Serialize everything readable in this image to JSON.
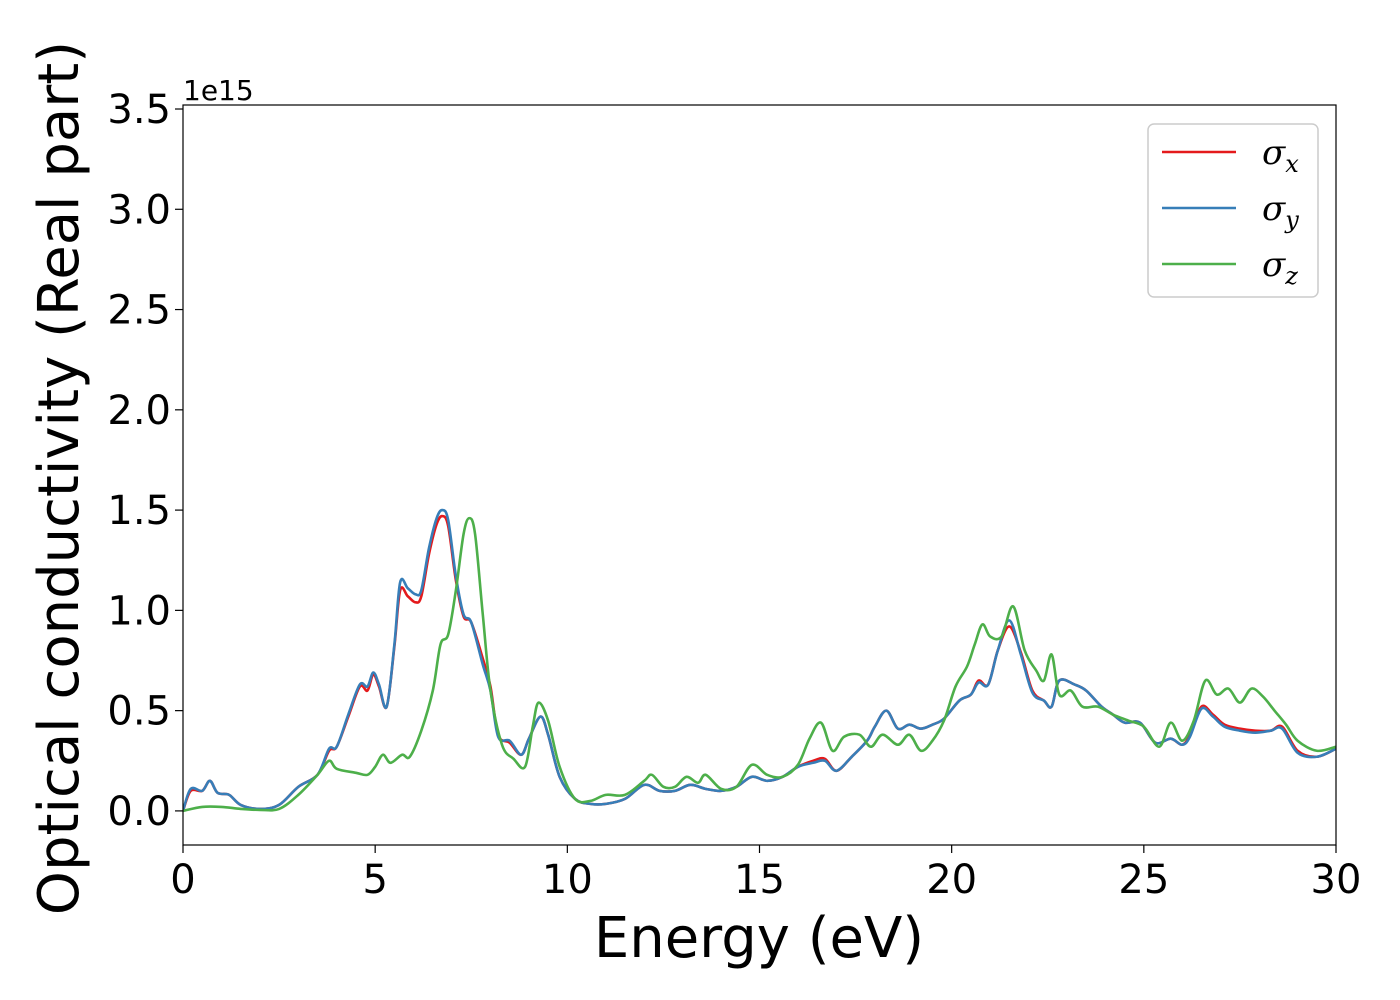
{
  "chart_data": {
    "type": "line",
    "xlabel": "Energy (eV)",
    "ylabel": "Optical conductivity (Real part)",
    "y_offset_label": "1e15",
    "xlim": [
      0,
      30
    ],
    "ylim": [
      -0.17,
      3.52
    ],
    "x_ticks": [
      0,
      5,
      10,
      15,
      20,
      25,
      30
    ],
    "x_tick_labels": [
      "0",
      "5",
      "10",
      "15",
      "20",
      "25",
      "30"
    ],
    "y_ticks": [
      0.0,
      0.5,
      1.0,
      1.5,
      2.0,
      2.5,
      3.0,
      3.5
    ],
    "y_tick_labels": [
      "0.0",
      "0.5",
      "1.0",
      "1.5",
      "2.0",
      "2.5",
      "3.0",
      "3.5"
    ],
    "grid": false,
    "legend_position": "top-right",
    "series": [
      {
        "name": "σx",
        "symbol": "σ",
        "subscript": "x",
        "color": "#e41a1c",
        "points": [
          [
            0,
            0.0
          ],
          [
            0.2,
            0.1
          ],
          [
            0.5,
            0.1
          ],
          [
            0.7,
            0.15
          ],
          [
            0.9,
            0.09
          ],
          [
            1.2,
            0.08
          ],
          [
            1.5,
            0.03
          ],
          [
            2.0,
            0.01
          ],
          [
            2.5,
            0.03
          ],
          [
            3.0,
            0.12
          ],
          [
            3.5,
            0.18
          ],
          [
            3.8,
            0.3
          ],
          [
            4.0,
            0.32
          ],
          [
            4.3,
            0.47
          ],
          [
            4.6,
            0.62
          ],
          [
            4.8,
            0.6
          ],
          [
            4.95,
            0.68
          ],
          [
            5.1,
            0.62
          ],
          [
            5.3,
            0.52
          ],
          [
            5.5,
            0.82
          ],
          [
            5.65,
            1.1
          ],
          [
            5.85,
            1.07
          ],
          [
            6.05,
            1.04
          ],
          [
            6.2,
            1.07
          ],
          [
            6.4,
            1.28
          ],
          [
            6.6,
            1.43
          ],
          [
            6.75,
            1.47
          ],
          [
            6.9,
            1.42
          ],
          [
            7.1,
            1.15
          ],
          [
            7.3,
            0.97
          ],
          [
            7.5,
            0.94
          ],
          [
            7.8,
            0.76
          ],
          [
            8.0,
            0.62
          ],
          [
            8.2,
            0.38
          ],
          [
            8.5,
            0.34
          ],
          [
            8.8,
            0.28
          ],
          [
            9.0,
            0.36
          ],
          [
            9.3,
            0.47
          ],
          [
            9.5,
            0.38
          ],
          [
            9.8,
            0.17
          ],
          [
            10.2,
            0.06
          ],
          [
            10.6,
            0.035
          ],
          [
            11.0,
            0.035
          ],
          [
            11.5,
            0.06
          ],
          [
            12.0,
            0.13
          ],
          [
            12.4,
            0.1
          ],
          [
            12.8,
            0.1
          ],
          [
            13.2,
            0.13
          ],
          [
            13.6,
            0.11
          ],
          [
            14.0,
            0.1
          ],
          [
            14.4,
            0.12
          ],
          [
            14.8,
            0.17
          ],
          [
            15.2,
            0.15
          ],
          [
            15.6,
            0.17
          ],
          [
            16.0,
            0.22
          ],
          [
            16.4,
            0.25
          ],
          [
            16.7,
            0.26
          ],
          [
            17.0,
            0.2
          ],
          [
            17.4,
            0.27
          ],
          [
            17.8,
            0.35
          ],
          [
            18.0,
            0.42
          ],
          [
            18.3,
            0.5
          ],
          [
            18.6,
            0.41
          ],
          [
            18.9,
            0.43
          ],
          [
            19.2,
            0.41
          ],
          [
            19.5,
            0.43
          ],
          [
            19.8,
            0.46
          ],
          [
            20.2,
            0.55
          ],
          [
            20.5,
            0.58
          ],
          [
            20.7,
            0.65
          ],
          [
            20.95,
            0.63
          ],
          [
            21.2,
            0.8
          ],
          [
            21.5,
            0.92
          ],
          [
            21.8,
            0.79
          ],
          [
            22.1,
            0.6
          ],
          [
            22.4,
            0.55
          ],
          [
            22.6,
            0.52
          ],
          [
            22.8,
            0.65
          ],
          [
            23.2,
            0.63
          ],
          [
            23.5,
            0.6
          ],
          [
            23.9,
            0.52
          ],
          [
            24.2,
            0.48
          ],
          [
            24.5,
            0.44
          ],
          [
            24.9,
            0.44
          ],
          [
            25.3,
            0.34
          ],
          [
            25.7,
            0.36
          ],
          [
            26.0,
            0.33
          ],
          [
            26.2,
            0.38
          ],
          [
            26.5,
            0.52
          ],
          [
            26.8,
            0.48
          ],
          [
            27.1,
            0.43
          ],
          [
            27.5,
            0.41
          ],
          [
            27.9,
            0.4
          ],
          [
            28.3,
            0.4
          ],
          [
            28.6,
            0.42
          ],
          [
            29.0,
            0.3
          ],
          [
            29.5,
            0.27
          ],
          [
            30.0,
            0.31
          ]
        ]
      },
      {
        "name": "σy",
        "symbol": "σ",
        "subscript": "y",
        "color": "#377eb8",
        "points": [
          [
            0,
            0.0
          ],
          [
            0.2,
            0.11
          ],
          [
            0.5,
            0.1
          ],
          [
            0.7,
            0.15
          ],
          [
            0.9,
            0.09
          ],
          [
            1.2,
            0.08
          ],
          [
            1.5,
            0.03
          ],
          [
            2.0,
            0.01
          ],
          [
            2.5,
            0.03
          ],
          [
            3.0,
            0.12
          ],
          [
            3.5,
            0.18
          ],
          [
            3.8,
            0.31
          ],
          [
            4.0,
            0.32
          ],
          [
            4.3,
            0.48
          ],
          [
            4.6,
            0.63
          ],
          [
            4.8,
            0.62
          ],
          [
            4.95,
            0.69
          ],
          [
            5.1,
            0.63
          ],
          [
            5.3,
            0.52
          ],
          [
            5.5,
            0.83
          ],
          [
            5.65,
            1.14
          ],
          [
            5.85,
            1.11
          ],
          [
            6.05,
            1.08
          ],
          [
            6.2,
            1.1
          ],
          [
            6.4,
            1.31
          ],
          [
            6.6,
            1.46
          ],
          [
            6.75,
            1.5
          ],
          [
            6.9,
            1.45
          ],
          [
            7.1,
            1.17
          ],
          [
            7.3,
            0.98
          ],
          [
            7.5,
            0.94
          ],
          [
            7.8,
            0.73
          ],
          [
            8.0,
            0.6
          ],
          [
            8.2,
            0.37
          ],
          [
            8.5,
            0.35
          ],
          [
            8.8,
            0.28
          ],
          [
            9.0,
            0.36
          ],
          [
            9.3,
            0.47
          ],
          [
            9.5,
            0.38
          ],
          [
            9.8,
            0.17
          ],
          [
            10.2,
            0.06
          ],
          [
            10.6,
            0.035
          ],
          [
            11.0,
            0.035
          ],
          [
            11.5,
            0.06
          ],
          [
            12.0,
            0.13
          ],
          [
            12.4,
            0.1
          ],
          [
            12.8,
            0.1
          ],
          [
            13.2,
            0.13
          ],
          [
            13.6,
            0.11
          ],
          [
            14.0,
            0.1
          ],
          [
            14.4,
            0.12
          ],
          [
            14.8,
            0.17
          ],
          [
            15.2,
            0.15
          ],
          [
            15.6,
            0.17
          ],
          [
            16.0,
            0.22
          ],
          [
            16.4,
            0.24
          ],
          [
            16.7,
            0.25
          ],
          [
            17.0,
            0.2
          ],
          [
            17.4,
            0.27
          ],
          [
            17.8,
            0.35
          ],
          [
            18.0,
            0.42
          ],
          [
            18.3,
            0.5
          ],
          [
            18.6,
            0.41
          ],
          [
            18.9,
            0.43
          ],
          [
            19.2,
            0.41
          ],
          [
            19.5,
            0.43
          ],
          [
            19.8,
            0.46
          ],
          [
            20.2,
            0.55
          ],
          [
            20.5,
            0.58
          ],
          [
            20.7,
            0.64
          ],
          [
            20.95,
            0.63
          ],
          [
            21.2,
            0.8
          ],
          [
            21.5,
            0.95
          ],
          [
            21.8,
            0.78
          ],
          [
            22.1,
            0.59
          ],
          [
            22.4,
            0.55
          ],
          [
            22.6,
            0.52
          ],
          [
            22.8,
            0.65
          ],
          [
            23.2,
            0.63
          ],
          [
            23.5,
            0.6
          ],
          [
            23.9,
            0.52
          ],
          [
            24.2,
            0.48
          ],
          [
            24.5,
            0.44
          ],
          [
            24.9,
            0.44
          ],
          [
            25.3,
            0.34
          ],
          [
            25.7,
            0.36
          ],
          [
            26.0,
            0.33
          ],
          [
            26.2,
            0.37
          ],
          [
            26.5,
            0.51
          ],
          [
            26.8,
            0.47
          ],
          [
            27.1,
            0.42
          ],
          [
            27.5,
            0.4
          ],
          [
            27.9,
            0.39
          ],
          [
            28.3,
            0.4
          ],
          [
            28.6,
            0.41
          ],
          [
            29.0,
            0.29
          ],
          [
            29.5,
            0.27
          ],
          [
            30.0,
            0.31
          ]
        ]
      },
      {
        "name": "σz",
        "symbol": "σ",
        "subscript": "z",
        "color": "#4daf4a",
        "points": [
          [
            0,
            0.0
          ],
          [
            0.5,
            0.02
          ],
          [
            1.0,
            0.02
          ],
          [
            1.5,
            0.01
          ],
          [
            2.0,
            0.005
          ],
          [
            2.5,
            0.01
          ],
          [
            3.0,
            0.08
          ],
          [
            3.5,
            0.18
          ],
          [
            3.8,
            0.25
          ],
          [
            4.0,
            0.21
          ],
          [
            4.5,
            0.19
          ],
          [
            4.8,
            0.18
          ],
          [
            5.0,
            0.22
          ],
          [
            5.2,
            0.28
          ],
          [
            5.4,
            0.24
          ],
          [
            5.7,
            0.28
          ],
          [
            5.9,
            0.27
          ],
          [
            6.2,
            0.4
          ],
          [
            6.5,
            0.6
          ],
          [
            6.7,
            0.83
          ],
          [
            6.9,
            0.88
          ],
          [
            7.1,
            1.1
          ],
          [
            7.3,
            1.38
          ],
          [
            7.45,
            1.46
          ],
          [
            7.6,
            1.38
          ],
          [
            7.8,
            0.98
          ],
          [
            8.0,
            0.6
          ],
          [
            8.3,
            0.33
          ],
          [
            8.6,
            0.26
          ],
          [
            8.9,
            0.22
          ],
          [
            9.1,
            0.42
          ],
          [
            9.25,
            0.54
          ],
          [
            9.5,
            0.45
          ],
          [
            9.8,
            0.22
          ],
          [
            10.2,
            0.06
          ],
          [
            10.6,
            0.05
          ],
          [
            11.0,
            0.08
          ],
          [
            11.5,
            0.08
          ],
          [
            12.0,
            0.15
          ],
          [
            12.2,
            0.18
          ],
          [
            12.5,
            0.12
          ],
          [
            12.8,
            0.12
          ],
          [
            13.1,
            0.17
          ],
          [
            13.4,
            0.14
          ],
          [
            13.6,
            0.18
          ],
          [
            14.0,
            0.11
          ],
          [
            14.4,
            0.12
          ],
          [
            14.8,
            0.23
          ],
          [
            15.2,
            0.18
          ],
          [
            15.6,
            0.17
          ],
          [
            16.0,
            0.23
          ],
          [
            16.3,
            0.36
          ],
          [
            16.6,
            0.44
          ],
          [
            16.9,
            0.3
          ],
          [
            17.2,
            0.37
          ],
          [
            17.6,
            0.38
          ],
          [
            17.9,
            0.32
          ],
          [
            18.2,
            0.38
          ],
          [
            18.6,
            0.33
          ],
          [
            18.9,
            0.38
          ],
          [
            19.2,
            0.3
          ],
          [
            19.5,
            0.35
          ],
          [
            19.8,
            0.45
          ],
          [
            20.1,
            0.62
          ],
          [
            20.4,
            0.72
          ],
          [
            20.6,
            0.83
          ],
          [
            20.8,
            0.93
          ],
          [
            21.0,
            0.87
          ],
          [
            21.3,
            0.87
          ],
          [
            21.6,
            1.02
          ],
          [
            21.9,
            0.8
          ],
          [
            22.2,
            0.7
          ],
          [
            22.4,
            0.65
          ],
          [
            22.6,
            0.78
          ],
          [
            22.8,
            0.58
          ],
          [
            23.1,
            0.6
          ],
          [
            23.4,
            0.52
          ],
          [
            23.8,
            0.52
          ],
          [
            24.2,
            0.48
          ],
          [
            24.6,
            0.45
          ],
          [
            25.0,
            0.42
          ],
          [
            25.4,
            0.32
          ],
          [
            25.7,
            0.44
          ],
          [
            26.0,
            0.35
          ],
          [
            26.3,
            0.45
          ],
          [
            26.6,
            0.65
          ],
          [
            26.9,
            0.58
          ],
          [
            27.2,
            0.61
          ],
          [
            27.5,
            0.54
          ],
          [
            27.8,
            0.61
          ],
          [
            28.1,
            0.57
          ],
          [
            28.4,
            0.5
          ],
          [
            28.7,
            0.43
          ],
          [
            29.0,
            0.35
          ],
          [
            29.5,
            0.3
          ],
          [
            30.0,
            0.32
          ]
        ]
      }
    ]
  }
}
